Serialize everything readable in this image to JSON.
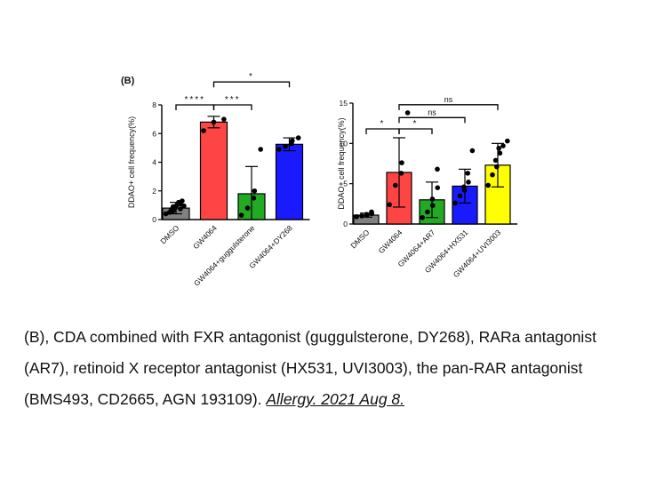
{
  "panel_label": "(B)",
  "chart_data": [
    {
      "type": "bar",
      "ylabel": "DDAO+ cell frequency(%)",
      "ylim": [
        0,
        8
      ],
      "yticks": [
        0,
        2,
        4,
        6,
        8
      ],
      "categories": [
        "DMSO",
        "GW4064",
        "GW4064+guggulsterone",
        "GW4064+DY268"
      ],
      "values": [
        0.8,
        6.8,
        1.8,
        5.25
      ],
      "errors": [
        0.4,
        0.4,
        1.9,
        0.45
      ],
      "colors": [
        "#808080",
        "#ff4444",
        "#22aa22",
        "#1a1aff"
      ],
      "points": [
        [
          0.4,
          0.5,
          0.6,
          0.7,
          0.8,
          0.9,
          1.0,
          1.1,
          1.2,
          1.3,
          0.75,
          0.95
        ],
        [
          6.2,
          6.8,
          7.0
        ],
        [
          0.3,
          0.8,
          1.5,
          2.0,
          4.9
        ],
        [
          4.9,
          5.1,
          5.3,
          5.5,
          5.7
        ]
      ],
      "significance": [
        {
          "from": 0,
          "to": 1,
          "label": "****",
          "level": 8.0
        },
        {
          "from": 1,
          "to": 2,
          "label": "***",
          "level": 8.0
        },
        {
          "from": 1,
          "to": 3,
          "label": "*",
          "level": 9.6
        }
      ]
    },
    {
      "type": "bar",
      "ylabel": "DDAO+ cell frequency(%)",
      "ylim": [
        0,
        15
      ],
      "yticks": [
        0,
        5,
        10,
        15
      ],
      "categories": [
        "DMSO",
        "GW4064",
        "GW4064+AR7",
        "GW4064+HX531",
        "GW4064+UVI3003"
      ],
      "values": [
        1.1,
        6.4,
        3.0,
        4.7,
        7.3
      ],
      "errors": [
        0.25,
        4.3,
        2.2,
        2.1,
        2.7
      ],
      "colors": [
        "#808080",
        "#ff4444",
        "#22aa22",
        "#1a1aff",
        "#ffff00"
      ],
      "points": [
        [
          0.9,
          1.0,
          1.1,
          1.2,
          1.3,
          1.5
        ],
        [
          2.4,
          4.8,
          6.3,
          7.6,
          13.8
        ],
        [
          0.8,
          1.5,
          2.3,
          3.1,
          4.5,
          6.8
        ],
        [
          2.6,
          3.5,
          4.2,
          4.6,
          5.2,
          6.3,
          9.1
        ],
        [
          4.8,
          6.1,
          7.1,
          7.9,
          8.8,
          9.4,
          9.7,
          10.3
        ]
      ],
      "significance": [
        {
          "from": 0,
          "to": 1,
          "label": "*",
          "level": 11.8
        },
        {
          "from": 1,
          "to": 2,
          "label": "*",
          "level": 11.8
        },
        {
          "from": 1,
          "to": 3,
          "label": "ns",
          "level": 13.2
        },
        {
          "from": 1,
          "to": 4,
          "label": "ns",
          "level": 14.8
        }
      ]
    }
  ],
  "caption": {
    "line1": "(B), CDA combined with FXR antagonist (guggulsterone, DY268), RARa antagonist",
    "line2": "(AR7), retinoid X receptor antagonist (HX531, UVI3003), the pan-RAR antagonist",
    "line3_text": "(BMS493, CD2665, AGN 193109). ",
    "line3_cite": "Allergy. 2021 Aug 8."
  }
}
